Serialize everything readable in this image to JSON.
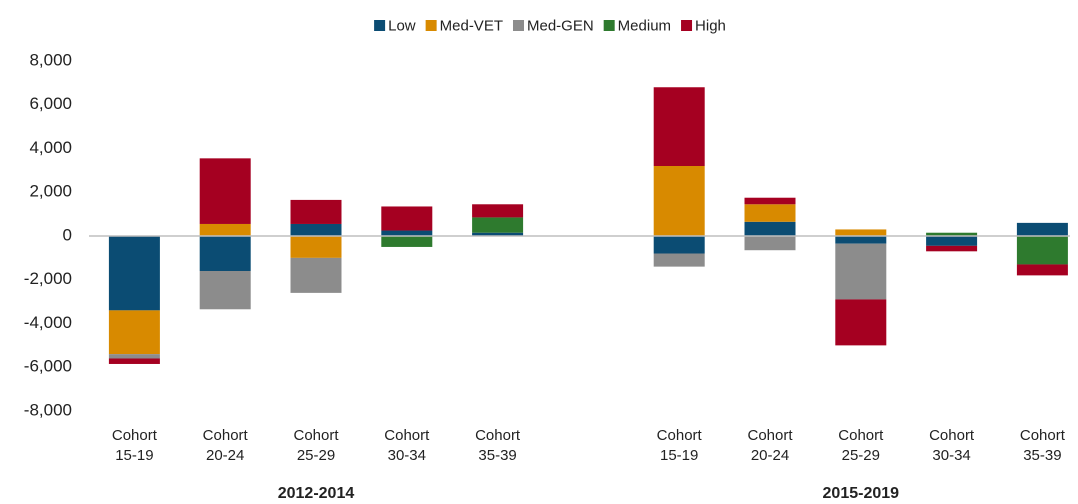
{
  "chart_data": {
    "type": "stacked_bar",
    "categories": [
      "Cohort 15-19",
      "Cohort 20-24",
      "Cohort 25-29",
      "Cohort 30-34",
      "Cohort 35-39",
      null,
      "Cohort 15-19",
      "Cohort 20-24",
      "Cohort 25-29",
      "Cohort 30-34",
      "Cohort 35-39"
    ],
    "group_labels": [
      "2012-2014",
      "2015-2019"
    ],
    "series": [
      {
        "name": "Low",
        "color": "#0b4c73",
        "values": [
          -3400,
          -1600,
          550,
          250,
          150,
          null,
          -800,
          650,
          -350,
          -450,
          600
        ]
      },
      {
        "name": "Med-VET",
        "color": "#d88a00",
        "values": [
          -2000,
          550,
          -1000,
          0,
          0,
          null,
          3200,
          800,
          300,
          0,
          0
        ]
      },
      {
        "name": "Med-GEN",
        "color": "#8c8c8c",
        "values": [
          -200,
          -1750,
          -1600,
          0,
          0,
          null,
          -600,
          -650,
          -2550,
          0,
          0
        ]
      },
      {
        "name": "Medium",
        "color": "#2e7a2e",
        "values": [
          0,
          0,
          0,
          -500,
          700,
          null,
          0,
          0,
          0,
          150,
          -1300
        ]
      },
      {
        "name": "High",
        "color": "#a50021",
        "values": [
          -250,
          3000,
          1100,
          1100,
          600,
          null,
          3600,
          300,
          -2100,
          -250,
          -500
        ]
      }
    ],
    "ylim": [
      -8000,
      8000
    ],
    "yticks": [
      {
        "value": -8000,
        "label": "-8,000"
      },
      {
        "value": -6000,
        "label": "-6,000"
      },
      {
        "value": -4000,
        "label": "-4,000"
      },
      {
        "value": -2000,
        "label": "-2,000"
      },
      0,
      {
        "value": 2000,
        "label": "2,000"
      },
      {
        "value": 4000,
        "label": "4,000"
      },
      {
        "value": 6000,
        "label": "6,000"
      },
      {
        "value": 8000,
        "label": "8,000"
      }
    ],
    "grid": false,
    "legend": "top"
  }
}
